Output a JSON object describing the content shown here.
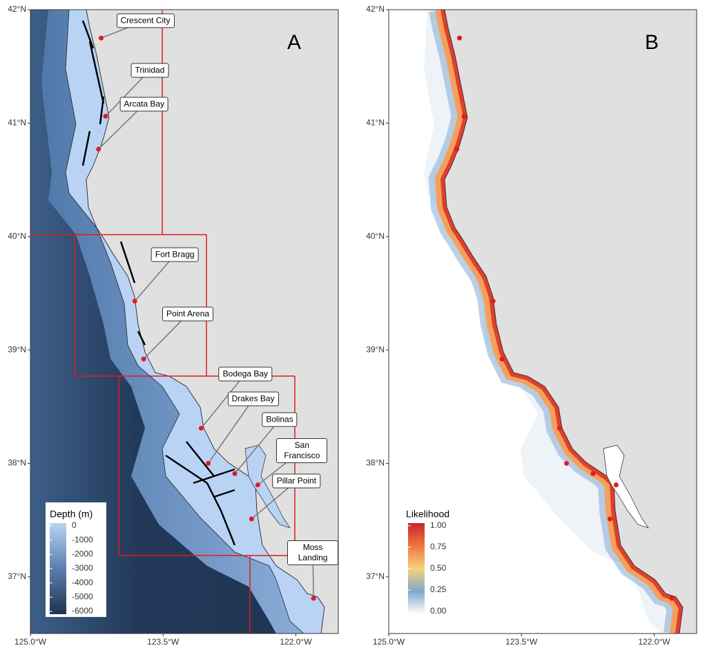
{
  "xlim": [
    -125,
    -121.52
  ],
  "ylim": [
    36.5,
    42
  ],
  "xticks": [
    {
      "value": -125,
      "label": "125.0°W"
    },
    {
      "value": -123.5,
      "label": "123.5°W"
    },
    {
      "value": -122,
      "label": "122.0°W"
    }
  ],
  "yticks": [
    {
      "value": 37,
      "label": "37°N"
    },
    {
      "value": 38,
      "label": "38°N"
    },
    {
      "value": 39,
      "label": "39°N"
    },
    {
      "value": 40,
      "label": "40°N"
    },
    {
      "value": 41,
      "label": "41°N"
    },
    {
      "value": 42,
      "label": "42°N"
    }
  ],
  "panels": [
    {
      "label": "A",
      "legend": {
        "title": "Depth (m)",
        "lim": [
          0,
          -6000
        ],
        "ticks": [
          0,
          -1000,
          -2000,
          -3000,
          -4000,
          -5000,
          -6000
        ]
      }
    },
    {
      "label": "B",
      "legend": {
        "title": "Likelihood",
        "lim": [
          1,
          0
        ],
        "ticks": [
          {
            "value": 1,
            "label": "1.00"
          },
          {
            "value": 0.75,
            "label": "0.75"
          },
          {
            "value": 0.5,
            "label": "0.50"
          },
          {
            "value": 0.25,
            "label": "0.25"
          },
          {
            "value": 0,
            "label": "0.00"
          }
        ]
      }
    }
  ],
  "ports": [
    {
      "name": "Crescent City",
      "lon": -124.2,
      "lat": 41.75
    },
    {
      "name": "Trinidad",
      "lon": -124.15,
      "lat": 41.06
    },
    {
      "name": "Arcata Bay",
      "lon": -124.23,
      "lat": 40.77
    },
    {
      "name": "Fort Bragg",
      "lon": -123.82,
      "lat": 39.43
    },
    {
      "name": "Point Arena",
      "lon": -123.72,
      "lat": 38.92
    },
    {
      "name": "Bodega Bay",
      "lon": -123.07,
      "lat": 38.31
    },
    {
      "name": "Drakes Bay",
      "lon": -122.99,
      "lat": 38.0
    },
    {
      "name": "Bolinas",
      "lon": -122.69,
      "lat": 37.91
    },
    {
      "name": "San Francisco",
      "lon": -122.43,
      "lat": 37.81
    },
    {
      "name": "Pillar Point",
      "lon": -122.5,
      "lat": 37.51
    },
    {
      "name": "Moss Landing",
      "lon": -121.8,
      "lat": 36.81
    }
  ]
}
